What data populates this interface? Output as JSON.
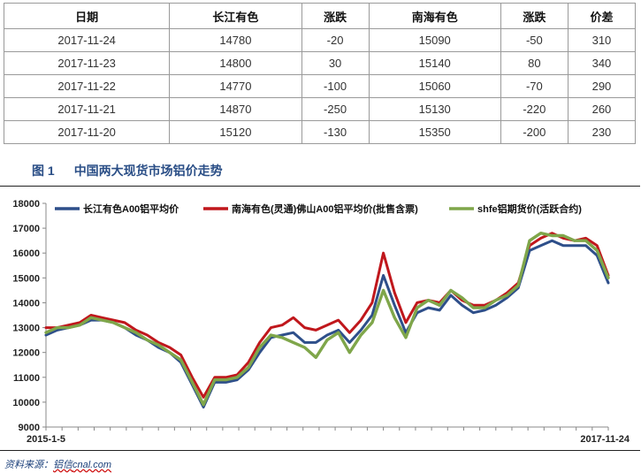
{
  "table": {
    "headers": [
      "日期",
      "长江有色",
      "涨跌",
      "南海有色",
      "涨跌",
      "价差"
    ],
    "rows": [
      [
        "2017-11-24",
        "14780",
        "-20",
        "15090",
        "-50",
        "310"
      ],
      [
        "2017-11-23",
        "14800",
        "30",
        "15140",
        "80",
        "340"
      ],
      [
        "2017-11-22",
        "14770",
        "-100",
        "15060",
        "-70",
        "290"
      ],
      [
        "2017-11-21",
        "14870",
        "-250",
        "15130",
        "-220",
        "260"
      ],
      [
        "2017-11-20",
        "15120",
        "-130",
        "15350",
        "-200",
        "230"
      ]
    ]
  },
  "figure": {
    "number": "图 1",
    "title": "中国两大现货市场铝价走势"
  },
  "source": {
    "prefix": "资料来源：",
    "provider": "铝信",
    "site": "cnal.com"
  },
  "chart_data": {
    "type": "line",
    "x_start_label": "2015-1-5",
    "x_end_label": "2017-11-24",
    "ylim": [
      9000,
      18000
    ],
    "yticks": [
      9000,
      10000,
      11000,
      12000,
      13000,
      14000,
      15000,
      16000,
      17000,
      18000
    ],
    "legend_position": "top",
    "grid": false,
    "x_fraction": [
      0.0,
      0.02,
      0.04,
      0.06,
      0.08,
      0.1,
      0.12,
      0.14,
      0.16,
      0.18,
      0.2,
      0.22,
      0.24,
      0.26,
      0.28,
      0.3,
      0.32,
      0.34,
      0.36,
      0.38,
      0.4,
      0.42,
      0.44,
      0.46,
      0.48,
      0.5,
      0.52,
      0.54,
      0.56,
      0.58,
      0.6,
      0.62,
      0.64,
      0.66,
      0.68,
      0.7,
      0.72,
      0.74,
      0.76,
      0.78,
      0.8,
      0.82,
      0.84,
      0.86,
      0.88,
      0.9,
      0.92,
      0.94,
      0.96,
      0.98,
      1.0
    ],
    "series": [
      {
        "name": "长江有色A00铝平均价",
        "color": "#2e4f8a",
        "values": [
          12700,
          12900,
          13000,
          13100,
          13300,
          13300,
          13200,
          13000,
          12700,
          12500,
          12200,
          12000,
          11600,
          10700,
          9800,
          10800,
          10800,
          10900,
          11300,
          12000,
          12600,
          12700,
          12800,
          12400,
          12400,
          12700,
          12900,
          12400,
          12900,
          13500,
          15100,
          13900,
          12800,
          13600,
          13800,
          13700,
          14300,
          13900,
          13600,
          13700,
          13900,
          14200,
          14600,
          16100,
          16300,
          16500,
          16300,
          16300,
          16300,
          15900,
          14800
        ]
      },
      {
        "name": "南海有色(灵通)佛山A00铝平均价(批售含票)",
        "color": "#c0171c",
        "values": [
          13000,
          13000,
          13100,
          13200,
          13500,
          13400,
          13300,
          13200,
          12900,
          12700,
          12400,
          12200,
          11900,
          11000,
          10200,
          11000,
          11000,
          11100,
          11600,
          12400,
          13000,
          13100,
          13400,
          13000,
          12900,
          13100,
          13300,
          12800,
          13300,
          14000,
          16000,
          14400,
          13200,
          14000,
          14100,
          14000,
          14500,
          14100,
          13900,
          13900,
          14100,
          14400,
          14800,
          16300,
          16600,
          16800,
          16600,
          16500,
          16600,
          16300,
          15100
        ]
      },
      {
        "name": "shfe铝期货价(活跃合约)",
        "color": "#7fa64a",
        "values": [
          12800,
          13000,
          13000,
          13100,
          13400,
          13300,
          13200,
          13000,
          12800,
          12500,
          12300,
          12000,
          11700,
          10800,
          9900,
          10900,
          10900,
          11000,
          11400,
          12200,
          12700,
          12600,
          12400,
          12200,
          11800,
          12500,
          12800,
          12000,
          12700,
          13200,
          14500,
          13400,
          12600,
          13800,
          14100,
          13900,
          14500,
          14200,
          13800,
          13800,
          14100,
          14300,
          14700,
          16500,
          16800,
          16700,
          16700,
          16500,
          16500,
          16100,
          15000
        ]
      }
    ]
  }
}
